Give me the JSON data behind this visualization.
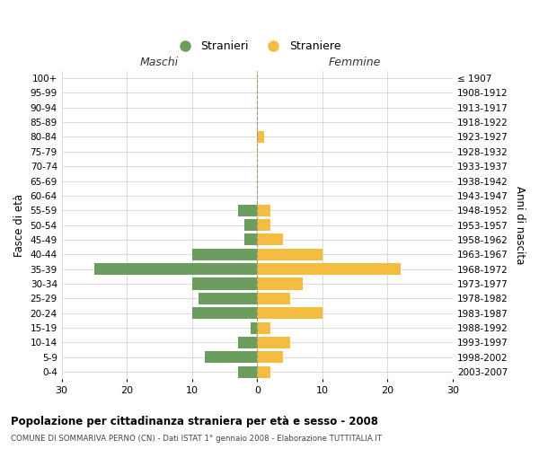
{
  "age_groups": [
    "0-4",
    "5-9",
    "10-14",
    "15-19",
    "20-24",
    "25-29",
    "30-34",
    "35-39",
    "40-44",
    "45-49",
    "50-54",
    "55-59",
    "60-64",
    "65-69",
    "70-74",
    "75-79",
    "80-84",
    "85-89",
    "90-94",
    "95-99",
    "100+"
  ],
  "birth_years": [
    "2003-2007",
    "1998-2002",
    "1993-1997",
    "1988-1992",
    "1983-1987",
    "1978-1982",
    "1973-1977",
    "1968-1972",
    "1963-1967",
    "1958-1962",
    "1953-1957",
    "1948-1952",
    "1943-1947",
    "1938-1942",
    "1933-1937",
    "1928-1932",
    "1923-1927",
    "1918-1922",
    "1913-1917",
    "1908-1912",
    "≤ 1907"
  ],
  "males": [
    3,
    8,
    3,
    1,
    10,
    9,
    10,
    25,
    10,
    2,
    2,
    3,
    0,
    0,
    0,
    0,
    0,
    0,
    0,
    0,
    0
  ],
  "females": [
    2,
    4,
    5,
    2,
    10,
    5,
    7,
    22,
    10,
    4,
    2,
    2,
    0,
    0,
    0,
    0,
    1,
    0,
    0,
    0,
    0
  ],
  "male_color": "#6b9e5e",
  "female_color": "#f5bc42",
  "male_label": "Stranieri",
  "female_label": "Straniere",
  "xlim": [
    -30,
    30
  ],
  "xticks": [
    -30,
    -20,
    -10,
    0,
    10,
    20,
    30
  ],
  "xticklabels": [
    "30",
    "20",
    "10",
    "0",
    "10",
    "20",
    "30"
  ],
  "title": "Popolazione per cittadinanza straniera per età e sesso - 2008",
  "subtitle": "COMUNE DI SOMMARIVA PERNO (CN) - Dati ISTAT 1° gennaio 2008 - Elaborazione TUTTITALIA.IT",
  "ylabel_left": "Fasce di età",
  "ylabel_right": "Anni di nascita",
  "header_left": "Maschi",
  "header_right": "Femmine",
  "background_color": "#ffffff",
  "grid_color": "#cccccc",
  "bar_height": 0.8
}
